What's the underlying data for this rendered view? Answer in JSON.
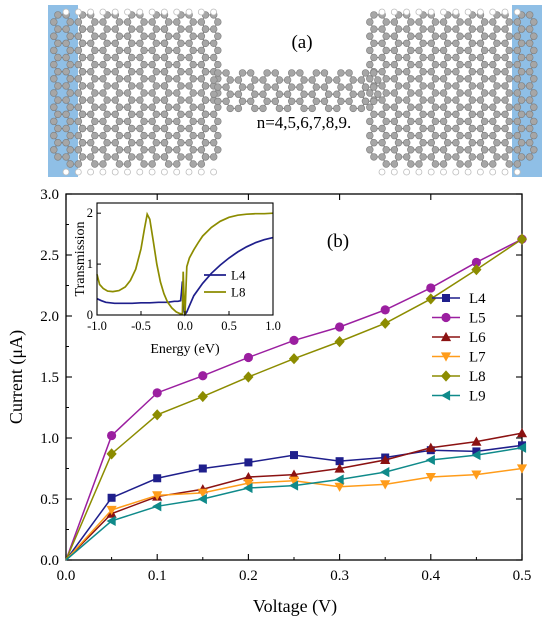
{
  "panel_a": {
    "label": "(a)",
    "annotation": "n=4,5,6,7,8,9.",
    "colors": {
      "lead": "#8fbfe6",
      "carbon": "#a6a6a6",
      "bond": "#8a8a8a"
    }
  },
  "chart_data": [
    {
      "type": "line",
      "panel_label": "(b)",
      "xlabel": "Voltage (V)",
      "ylabel": "Current (μA)",
      "xlim": [
        0.0,
        0.5
      ],
      "ylim": [
        0.0,
        3.0
      ],
      "x_ticks": [
        "0.0",
        "0.1",
        "0.2",
        "0.3",
        "0.4",
        "0.5"
      ],
      "y_ticks": [
        "0.0",
        "0.5",
        "1.0",
        "1.5",
        "2.0",
        "2.5",
        "3.0"
      ],
      "legend_position": "right",
      "x": [
        0.0,
        0.05,
        0.1,
        0.15,
        0.2,
        0.25,
        0.3,
        0.35,
        0.4,
        0.45,
        0.5
      ],
      "series": [
        {
          "name": "L4",
          "color": "#1f1f8c",
          "marker": "square",
          "values": [
            0.0,
            0.51,
            0.67,
            0.75,
            0.8,
            0.86,
            0.81,
            0.84,
            0.9,
            0.89,
            0.94
          ]
        },
        {
          "name": "L5",
          "color": "#9b1fa0",
          "marker": "circle",
          "values": [
            0.0,
            1.02,
            1.37,
            1.51,
            1.66,
            1.8,
            1.91,
            2.05,
            2.23,
            2.44,
            2.63
          ]
        },
        {
          "name": "L6",
          "color": "#8b1212",
          "marker": "triangle-up",
          "values": [
            0.0,
            0.38,
            0.52,
            0.58,
            0.68,
            0.7,
            0.75,
            0.82,
            0.92,
            0.97,
            1.04
          ]
        },
        {
          "name": "L7",
          "color": "#ff9c1a",
          "marker": "triangle-down",
          "values": [
            0.0,
            0.41,
            0.53,
            0.55,
            0.63,
            0.65,
            0.6,
            0.62,
            0.68,
            0.7,
            0.75
          ]
        },
        {
          "name": "L8",
          "color": "#8c8c00",
          "marker": "diamond",
          "values": [
            0.0,
            0.87,
            1.19,
            1.34,
            1.5,
            1.65,
            1.79,
            1.94,
            2.14,
            2.38,
            2.63
          ]
        },
        {
          "name": "L9",
          "color": "#0f8a8a",
          "marker": "triangle-left",
          "values": [
            0.0,
            0.32,
            0.44,
            0.5,
            0.59,
            0.61,
            0.66,
            0.72,
            0.82,
            0.86,
            0.92
          ]
        }
      ]
    },
    {
      "type": "line",
      "xlabel": "Energy (eV)",
      "ylabel": "Transmission",
      "xlim": [
        -1.0,
        1.0
      ],
      "ylim": [
        0.0,
        2.2
      ],
      "x_ticks": [
        "-1.0",
        "-0.5",
        "0.0",
        "0.5",
        "1.0"
      ],
      "y_ticks": [
        "0",
        "1",
        "2"
      ],
      "legend_position": "bottom-right",
      "series": [
        {
          "name": "L4",
          "color": "#1f1f8c",
          "points": [
            [
              -1.0,
              0.32
            ],
            [
              -0.95,
              0.28
            ],
            [
              -0.9,
              0.25
            ],
            [
              -0.8,
              0.23
            ],
            [
              -0.7,
              0.23
            ],
            [
              -0.6,
              0.23
            ],
            [
              -0.5,
              0.24
            ],
            [
              -0.4,
              0.24
            ],
            [
              -0.3,
              0.25
            ],
            [
              -0.2,
              0.25
            ],
            [
              -0.12,
              0.27
            ],
            [
              -0.08,
              0.27
            ],
            [
              -0.05,
              0.28
            ],
            [
              -0.04,
              0.45
            ],
            [
              -0.03,
              0.66
            ],
            [
              -0.02,
              0.3
            ],
            [
              -0.01,
              0.08
            ],
            [
              0.0,
              0.01
            ],
            [
              0.02,
              0.06
            ],
            [
              0.05,
              0.18
            ],
            [
              0.1,
              0.38
            ],
            [
              0.2,
              0.62
            ],
            [
              0.3,
              0.82
            ],
            [
              0.4,
              0.98
            ],
            [
              0.5,
              1.12
            ],
            [
              0.6,
              1.24
            ],
            [
              0.7,
              1.34
            ],
            [
              0.8,
              1.42
            ],
            [
              0.9,
              1.48
            ],
            [
              1.0,
              1.52
            ]
          ]
        },
        {
          "name": "L8",
          "color": "#8c8c00",
          "points": [
            [
              -1.0,
              0.8
            ],
            [
              -0.97,
              0.6
            ],
            [
              -0.93,
              0.52
            ],
            [
              -0.88,
              0.47
            ],
            [
              -0.82,
              0.46
            ],
            [
              -0.75,
              0.48
            ],
            [
              -0.68,
              0.55
            ],
            [
              -0.62,
              0.68
            ],
            [
              -0.56,
              0.9
            ],
            [
              -0.5,
              1.3
            ],
            [
              -0.46,
              1.7
            ],
            [
              -0.43,
              1.98
            ],
            [
              -0.4,
              1.88
            ],
            [
              -0.36,
              1.45
            ],
            [
              -0.32,
              1.0
            ],
            [
              -0.28,
              0.65
            ],
            [
              -0.24,
              0.42
            ],
            [
              -0.2,
              0.26
            ],
            [
              -0.15,
              0.14
            ],
            [
              -0.1,
              0.06
            ],
            [
              -0.06,
              0.03
            ],
            [
              -0.03,
              0.02
            ],
            [
              -0.02,
              0.85
            ],
            [
              -0.01,
              0.3
            ],
            [
              0.0,
              0.01
            ],
            [
              0.02,
              0.95
            ],
            [
              0.05,
              1.12
            ],
            [
              0.1,
              1.28
            ],
            [
              0.15,
              1.42
            ],
            [
              0.2,
              1.55
            ],
            [
              0.3,
              1.72
            ],
            [
              0.4,
              1.84
            ],
            [
              0.5,
              1.92
            ],
            [
              0.6,
              1.96
            ],
            [
              0.7,
              1.98
            ],
            [
              0.8,
              1.99
            ],
            [
              0.9,
              1.99
            ],
            [
              1.0,
              2.0
            ]
          ]
        }
      ]
    }
  ]
}
